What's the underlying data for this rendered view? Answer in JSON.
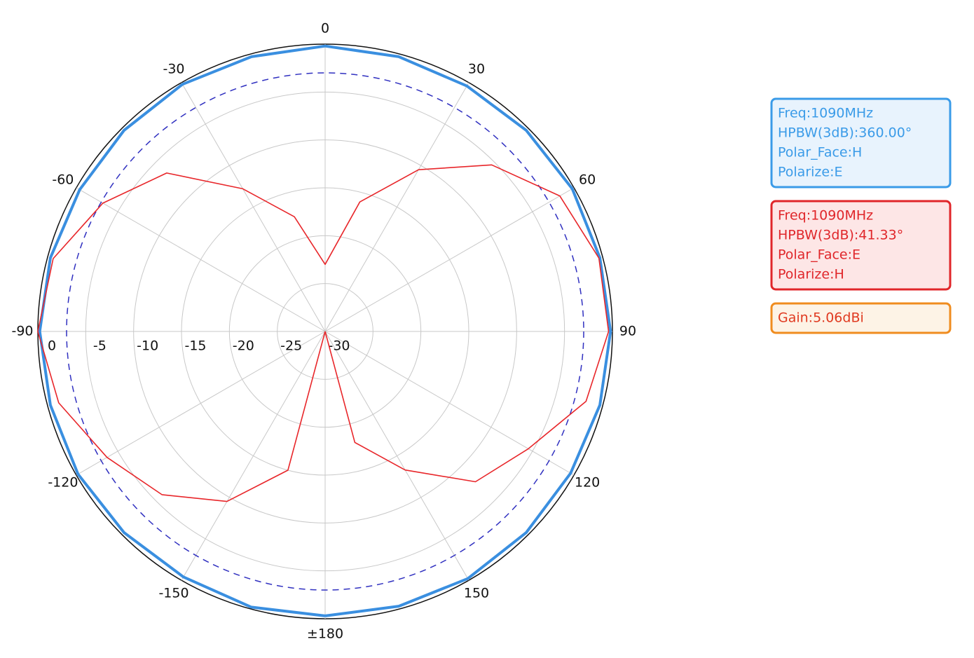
{
  "chart_data": {
    "type": "polar",
    "theta": [
      -180,
      -165,
      -150,
      -135,
      -120,
      -105,
      -90,
      -75,
      -60,
      -45,
      -30,
      -15,
      0,
      15,
      30,
      45,
      60,
      75,
      90,
      105,
      120,
      135,
      150,
      165,
      180
    ],
    "series": [
      {
        "color": "#3a8fe0",
        "values": [
          -0.3,
          -0.2,
          -0.4,
          -0.3,
          -0.2,
          -0.3,
          -0.2,
          -0.3,
          -0.4,
          -0.3,
          -0.2,
          -0.3,
          -0.2,
          -0.3,
          -0.4,
          -0.3,
          -0.2,
          -0.3,
          -0.2,
          -0.3,
          -0.4,
          -0.3,
          -0.2,
          -0.3,
          -0.3
        ]
      },
      {
        "color": "#e8262a",
        "values": [
          -30,
          -15,
          -9.5,
          -5.9,
          -3.7,
          -1.2,
          0,
          -0.6,
          -3.2,
          -6.6,
          -12.8,
          -17.6,
          -23,
          -16,
          -10.5,
          -5.4,
          -1.7,
          -0.4,
          -0.4,
          -1.8,
          -5.5,
          -7.8,
          -13.3,
          -18,
          -30
        ]
      }
    ],
    "ref_circle": -3,
    "rlim": [
      -30,
      0
    ],
    "rticks": [
      0,
      -5,
      -10,
      -15,
      -20,
      -25,
      -30
    ],
    "thetaticks": [
      0,
      30,
      60,
      90,
      120,
      150,
      {
        "value": 180,
        "label": "±180"
      },
      -150,
      -120,
      -90,
      -60,
      -30
    ],
    "grid": true,
    "info_boxes": [
      {
        "color": "#3a9be8",
        "lines": [
          "Freq:1090MHz",
          "HPBW(3dB):360.00°",
          "Polar_Face:H",
          "Polarize:E"
        ]
      },
      {
        "color": "#e0262a",
        "lines": [
          "Freq:1090MHz",
          "HPBW(3dB):41.33°",
          "Polar_Face:E",
          "Polarize:H"
        ]
      },
      {
        "color": "#f08c1f",
        "lines": [
          "Gain:5.06dBi"
        ]
      }
    ]
  }
}
